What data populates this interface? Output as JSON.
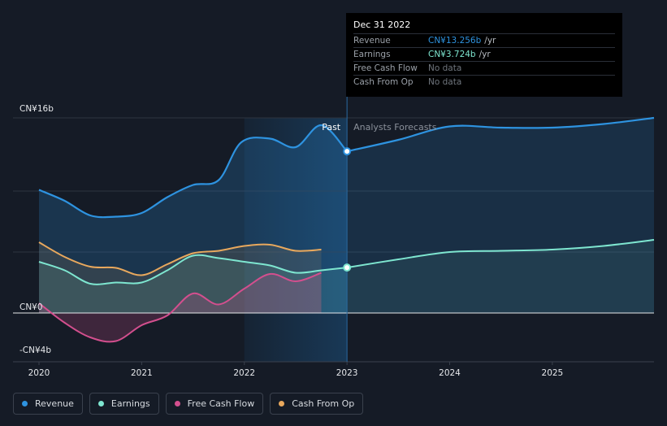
{
  "chart_data": {
    "type": "area",
    "x_ticks": [
      "2020",
      "2021",
      "2022",
      "2023",
      "2024",
      "2025"
    ],
    "y_ticks": [
      {
        "value": 16,
        "label": "CN¥16b"
      },
      {
        "value": 0,
        "label": "CN¥0"
      },
      {
        "value": -4,
        "label": "-CN¥4b"
      }
    ],
    "ylim": [
      -4,
      16
    ],
    "xlim": [
      2020.0,
      2025.99
    ],
    "divider_x": 2023.0,
    "highlight_range": [
      2022.0,
      2023.0
    ],
    "past_label": "Past",
    "forecast_label": "Analysts Forecasts",
    "series": [
      {
        "name": "Revenue",
        "color": "#2e93e0",
        "role": "revenue",
        "past": [
          [
            2020.0,
            10.1
          ],
          [
            2020.25,
            9.2
          ],
          [
            2020.5,
            8.0
          ],
          [
            2020.75,
            7.9
          ],
          [
            2021.0,
            8.2
          ],
          [
            2021.25,
            9.5
          ],
          [
            2021.5,
            10.5
          ],
          [
            2021.75,
            10.9
          ],
          [
            2021.97,
            14.0
          ],
          [
            2022.25,
            14.3
          ],
          [
            2022.5,
            13.6
          ],
          [
            2022.75,
            15.4
          ],
          [
            2023.0,
            13.256
          ]
        ],
        "forecast": [
          [
            2023.0,
            13.256
          ],
          [
            2023.5,
            14.2
          ],
          [
            2024.0,
            15.3
          ],
          [
            2024.5,
            15.2
          ],
          [
            2025.0,
            15.2
          ],
          [
            2025.5,
            15.5
          ],
          [
            2025.99,
            16.0
          ]
        ]
      },
      {
        "name": "Earnings",
        "color": "#7ee6d0",
        "role": "earnings",
        "past": [
          [
            2020.0,
            4.2
          ],
          [
            2020.25,
            3.5
          ],
          [
            2020.5,
            2.4
          ],
          [
            2020.75,
            2.5
          ],
          [
            2021.0,
            2.5
          ],
          [
            2021.25,
            3.5
          ],
          [
            2021.5,
            4.7
          ],
          [
            2021.75,
            4.5
          ],
          [
            2022.0,
            4.2
          ],
          [
            2022.25,
            3.9
          ],
          [
            2022.5,
            3.3
          ],
          [
            2022.75,
            3.5
          ],
          [
            2023.0,
            3.724
          ]
        ],
        "forecast": [
          [
            2023.0,
            3.724
          ],
          [
            2023.5,
            4.4
          ],
          [
            2024.0,
            5.0
          ],
          [
            2024.5,
            5.1
          ],
          [
            2025.0,
            5.2
          ],
          [
            2025.5,
            5.5
          ],
          [
            2025.99,
            6.0
          ]
        ]
      },
      {
        "name": "Free Cash Flow",
        "color": "#d34f8e",
        "role": "fcf",
        "past": [
          [
            2020.0,
            0.8
          ],
          [
            2020.25,
            -0.8
          ],
          [
            2020.5,
            -2.0
          ],
          [
            2020.75,
            -2.3
          ],
          [
            2021.0,
            -1.0
          ],
          [
            2021.25,
            -0.2
          ],
          [
            2021.5,
            1.6
          ],
          [
            2021.75,
            0.7
          ],
          [
            2022.0,
            2.0
          ],
          [
            2022.25,
            3.2
          ],
          [
            2022.5,
            2.6
          ],
          [
            2022.75,
            3.3
          ]
        ],
        "forecast": []
      },
      {
        "name": "Cash From Op",
        "color": "#e8a85d",
        "role": "cfo",
        "past": [
          [
            2020.0,
            5.8
          ],
          [
            2020.25,
            4.6
          ],
          [
            2020.5,
            3.8
          ],
          [
            2020.75,
            3.7
          ],
          [
            2021.0,
            3.1
          ],
          [
            2021.25,
            4.0
          ],
          [
            2021.5,
            4.9
          ],
          [
            2021.75,
            5.1
          ],
          [
            2022.0,
            5.5
          ],
          [
            2022.25,
            5.6
          ],
          [
            2022.5,
            5.1
          ],
          [
            2022.75,
            5.2
          ]
        ],
        "forecast": []
      }
    ]
  },
  "tooltip": {
    "date": "Dec 31 2022",
    "rows": [
      {
        "name": "Revenue",
        "value": "CN¥13.256b",
        "unit": "/yr",
        "color": "#2e93e0"
      },
      {
        "name": "Earnings",
        "value": "CN¥3.724b",
        "unit": "/yr",
        "color": "#7ee6d0"
      },
      {
        "name": "Free Cash Flow",
        "value": "No data",
        "unit": "",
        "color": "#6f757d"
      },
      {
        "name": "Cash From Op",
        "value": "No data",
        "unit": "",
        "color": "#6f757d"
      }
    ]
  },
  "legend": [
    {
      "label": "Revenue",
      "color": "#2e93e0"
    },
    {
      "label": "Earnings",
      "color": "#7ee6d0"
    },
    {
      "label": "Free Cash Flow",
      "color": "#d34f8e"
    },
    {
      "label": "Cash From Op",
      "color": "#e8a85d"
    }
  ]
}
